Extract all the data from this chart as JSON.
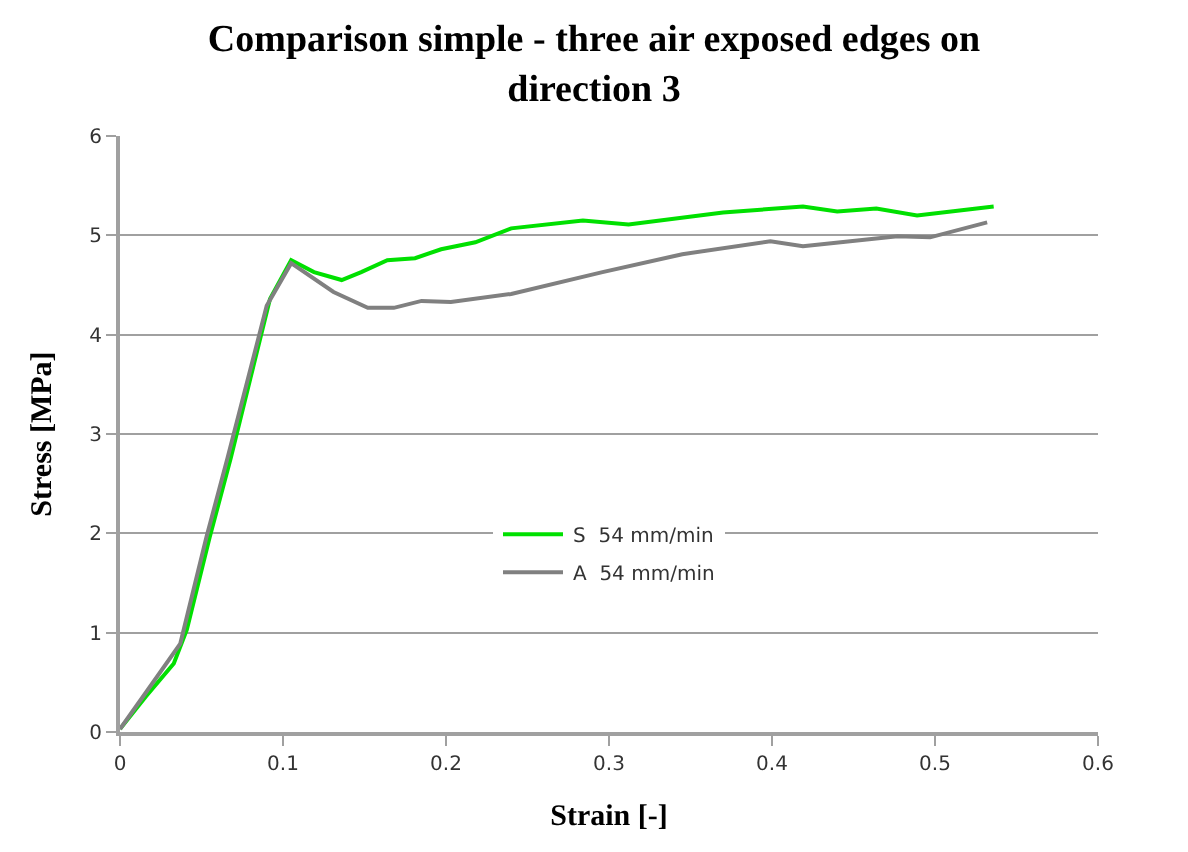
{
  "chart_data": {
    "type": "line",
    "title": "Comparison simple - three air exposed edges on direction 3",
    "xlabel": "Strain [-]",
    "ylabel": "Stress [MPa]",
    "xlim": [
      0,
      0.6
    ],
    "xticks": [
      0,
      0.1,
      0.2,
      0.3,
      0.4,
      0.5,
      0.6
    ],
    "ylim": [
      0,
      6
    ],
    "yticks": [
      0,
      1,
      2,
      3,
      4,
      5,
      6
    ],
    "grid": "y",
    "legend": "center",
    "marker": "none",
    "line_style": "solid",
    "series": [
      {
        "name": "S  54 mm/min",
        "color": "#00e000",
        "x": [
          0.0,
          0.016,
          0.033,
          0.041,
          0.055,
          0.068,
          0.08,
          0.092,
          0.105,
          0.119,
          0.136,
          0.148,
          0.164,
          0.181,
          0.197,
          0.218,
          0.24,
          0.284,
          0.312,
          0.37,
          0.419,
          0.44,
          0.464,
          0.489,
          0.536
        ],
        "values": [
          0.03,
          0.36,
          0.69,
          1.03,
          1.96,
          2.76,
          3.56,
          4.36,
          4.75,
          4.63,
          4.55,
          4.63,
          4.75,
          4.77,
          4.86,
          4.93,
          5.07,
          5.15,
          5.11,
          5.23,
          5.29,
          5.24,
          5.27,
          5.2,
          5.29
        ]
      },
      {
        "name": "A  54 mm/min",
        "color": "#808080",
        "x": [
          0.0,
          0.016,
          0.037,
          0.053,
          0.066,
          0.09,
          0.105,
          0.131,
          0.152,
          0.168,
          0.185,
          0.203,
          0.24,
          0.296,
          0.345,
          0.399,
          0.419,
          0.477,
          0.497,
          0.532
        ],
        "values": [
          0.03,
          0.4,
          0.89,
          1.96,
          2.76,
          4.29,
          4.72,
          4.43,
          4.27,
          4.27,
          4.34,
          4.33,
          4.41,
          4.63,
          4.81,
          4.94,
          4.89,
          4.99,
          4.98,
          5.13
        ]
      }
    ]
  }
}
